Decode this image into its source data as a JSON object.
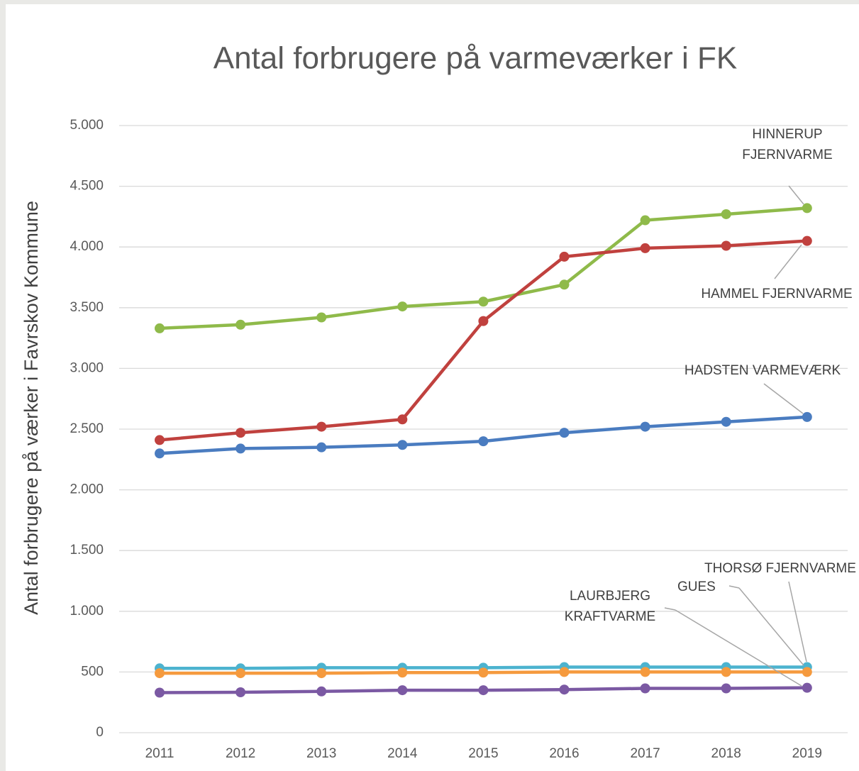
{
  "chart_data": {
    "type": "line",
    "title": "Antal forbrugere på varmeværker i FK",
    "y_label": "Antal forbrugere på værker i Favrskov Kommune",
    "categories": [
      "2011",
      "2012",
      "2013",
      "2014",
      "2015",
      "2016",
      "2017",
      "2018",
      "2019"
    ],
    "ylim": [
      0,
      5000
    ],
    "yticks": [
      0,
      500,
      {
        "value": 1000,
        "label": "1.000"
      },
      {
        "value": 1500,
        "label": "1.500"
      },
      {
        "value": 2000,
        "label": "2.000"
      },
      {
        "value": 2500,
        "label": "2.500"
      },
      {
        "value": 3000,
        "label": "3.000"
      },
      {
        "value": 3500,
        "label": "3.500"
      },
      {
        "value": 4000,
        "label": "4.000"
      },
      {
        "value": 4500,
        "label": "4.500"
      },
      {
        "value": 5000,
        "label": "5.000"
      }
    ],
    "grid": true,
    "series": [
      {
        "name": "HINNERUP FJERNVARME",
        "color": "#8fba4a",
        "values": [
          3330,
          3360,
          3420,
          3510,
          3550,
          3690,
          4220,
          4270,
          4320
        ]
      },
      {
        "name": "HAMMEL FJERNVARME",
        "color": "#c0413e",
        "values": [
          2410,
          2470,
          2520,
          2580,
          3390,
          3920,
          3990,
          4010,
          4050
        ]
      },
      {
        "name": "HADSTEN VARMEVÆRK",
        "color": "#4a7cc0",
        "values": [
          2300,
          2340,
          2350,
          2370,
          2400,
          2470,
          2520,
          2560,
          2600
        ]
      },
      {
        "name": "THORSØ FJERNVARME",
        "color": "#4cb3cf",
        "values": [
          530,
          530,
          535,
          535,
          535,
          540,
          540,
          540,
          540
        ]
      },
      {
        "name": "GUES",
        "color": "#f59a3e",
        "values": [
          490,
          490,
          490,
          495,
          495,
          500,
          500,
          500,
          500
        ]
      },
      {
        "name": "LAURBJERG KRAFTVARME",
        "color": "#7b59a3",
        "values": [
          330,
          333,
          340,
          350,
          350,
          355,
          365,
          365,
          370
        ]
      }
    ]
  }
}
